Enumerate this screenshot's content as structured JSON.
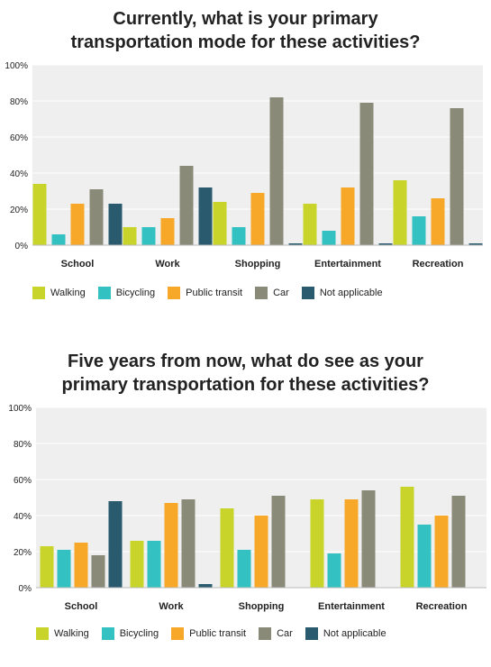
{
  "chart_data": [
    {
      "type": "bar",
      "title_lines": [
        "Currently, what is your primary",
        "transportation mode for these activities?"
      ],
      "categories": [
        "School",
        "Work",
        "Shopping",
        "Entertainment",
        "Recreation"
      ],
      "yticks": [
        "0%",
        "20%",
        "40%",
        "60%",
        "80%",
        "100%"
      ],
      "ylim": [
        0,
        100
      ],
      "grid": true,
      "legend_position": "bottom-left",
      "series": [
        {
          "name": "Walking",
          "color": "#c8d42a",
          "values": [
            34,
            10,
            24,
            23,
            36
          ]
        },
        {
          "name": "Bicycling",
          "color": "#33c1c1",
          "values": [
            6,
            10,
            10,
            8,
            16
          ]
        },
        {
          "name": "Public transit",
          "color": "#f7a829",
          "values": [
            23,
            15,
            29,
            32,
            26
          ]
        },
        {
          "name": "Car",
          "color": "#8a8a78",
          "values": [
            31,
            44,
            82,
            79,
            76
          ]
        },
        {
          "name": "Not applicable",
          "color": "#2a5a6e",
          "values": [
            23,
            32,
            1,
            1,
            1
          ]
        }
      ]
    },
    {
      "type": "bar",
      "title_lines": [
        "Five years from now, what do see as your",
        "primary transportation for these activities?"
      ],
      "categories": [
        "School",
        "Work",
        "Shopping",
        "Entertainment",
        "Recreation"
      ],
      "yticks": [
        "0%",
        "20%",
        "40%",
        "60%",
        "80%",
        "100%"
      ],
      "ylim": [
        0,
        100
      ],
      "grid": true,
      "legend_position": "bottom-left",
      "series": [
        {
          "name": "Walking",
          "color": "#c8d42a",
          "values": [
            23,
            26,
            44,
            49,
            56
          ]
        },
        {
          "name": "Bicycling",
          "color": "#33c1c1",
          "values": [
            21,
            26,
            21,
            19,
            35
          ]
        },
        {
          "name": "Public transit",
          "color": "#f7a829",
          "values": [
            25,
            47,
            40,
            49,
            40
          ]
        },
        {
          "name": "Car",
          "color": "#8a8a78",
          "values": [
            18,
            49,
            51,
            54,
            51
          ]
        },
        {
          "name": "Not applicable",
          "color": "#2a5a6e",
          "values": [
            48,
            2,
            0,
            0,
            0
          ]
        }
      ]
    }
  ]
}
